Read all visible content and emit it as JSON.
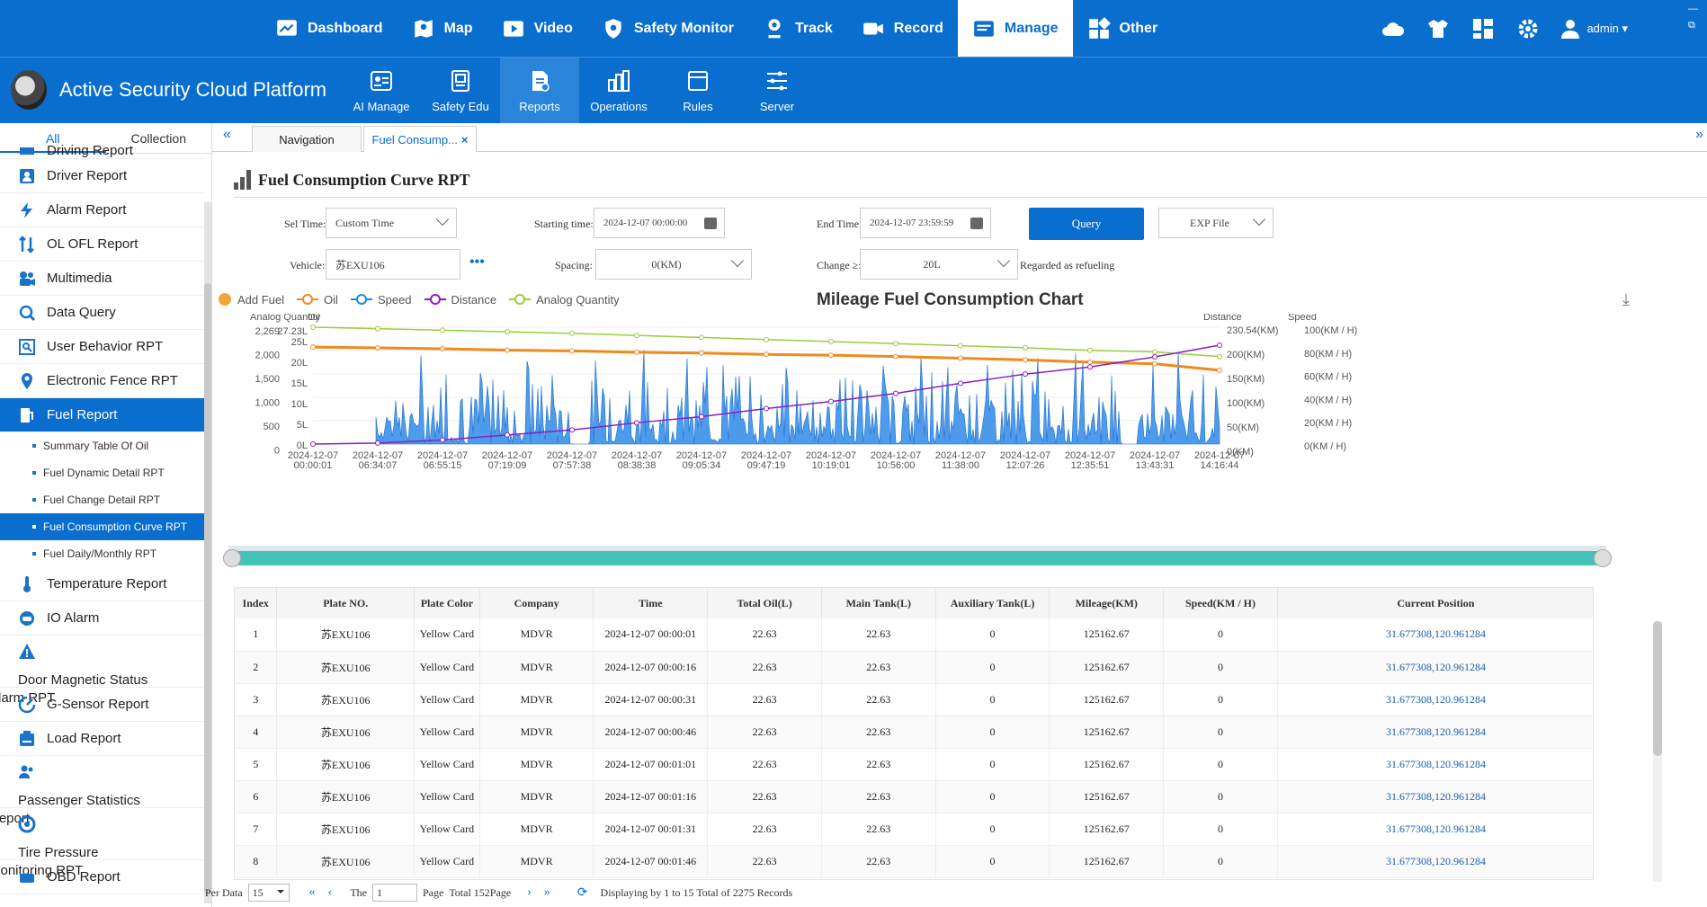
{
  "topnav": {
    "items": [
      {
        "label": "Dashboard",
        "icon": "dashboard-icon"
      },
      {
        "label": "Map",
        "icon": "map-icon"
      },
      {
        "label": "Video",
        "icon": "video-icon"
      },
      {
        "label": "Safety Monitor",
        "icon": "shield-icon"
      },
      {
        "label": "Track",
        "icon": "track-icon"
      },
      {
        "label": "Record",
        "icon": "record-icon"
      },
      {
        "label": "Manage",
        "icon": "manage-icon"
      },
      {
        "label": "Other",
        "icon": "grid-icon"
      }
    ],
    "active": "Manage",
    "user": "admin ▾"
  },
  "brand": {
    "title": "Active Security Cloud Platform"
  },
  "subnav": {
    "items": [
      {
        "label": "AI Manage"
      },
      {
        "label": "Safety Edu"
      },
      {
        "label": "Reports"
      },
      {
        "label": "Operations"
      },
      {
        "label": "Rules"
      },
      {
        "label": "Server"
      }
    ],
    "active": "Reports"
  },
  "sidebar": {
    "tabs": [
      "All",
      "Collection"
    ],
    "items": [
      {
        "label": "Driving Report"
      },
      {
        "label": "Driver Report"
      },
      {
        "label": "Alarm Report"
      },
      {
        "label": "OL OFL Report"
      },
      {
        "label": "Multimedia"
      },
      {
        "label": "Data Query"
      },
      {
        "label": "User Behavior RPT"
      },
      {
        "label": "Electronic Fence RPT"
      },
      {
        "label": "Fuel Report"
      },
      {
        "label": "Temperature Report"
      },
      {
        "label": "IO Alarm"
      },
      {
        "label": "Door Magnetic Status Alarm RPT"
      },
      {
        "label": "G-Sensor Report"
      },
      {
        "label": "Load Report"
      },
      {
        "label": "Passenger Statistics Report"
      },
      {
        "label": "Tire Pressure Monitoring RPT"
      },
      {
        "label": "OBD Report"
      }
    ],
    "fuel_sub": [
      {
        "label": "Summary Table Of Oil"
      },
      {
        "label": "Fuel Dynamic Detail RPT"
      },
      {
        "label": "Fuel Change Detail RPT"
      },
      {
        "label": "Fuel Consumption Curve RPT"
      },
      {
        "label": "Fuel Daily/Monthly RPT"
      }
    ]
  },
  "tabs": {
    "navigation": "Navigation",
    "fuel": "Fuel Consump...",
    "close": "×"
  },
  "page": {
    "title": "Fuel Consumption Curve RPT"
  },
  "filters": {
    "sel_time_label": "Sel Time:",
    "sel_time_value": "Custom Time",
    "start_label": "Starting time:",
    "start_value": "2024-12-07 00:00:00",
    "end_label": "End Time:",
    "end_value": "2024-12-07 23:59:59",
    "query": "Query",
    "export": "EXP File",
    "vehicle_label": "Vehicle:",
    "vehicle_value": "苏EXU106",
    "more": "•••",
    "spacing_label": "Spacing:",
    "spacing_value": "0(KM)",
    "change_label": "Change ≥:",
    "change_value": "20L",
    "refuel_note": "Regarded as refueling"
  },
  "chart_data": {
    "type": "line",
    "title": "Mileage Fuel Consumption Chart",
    "legend": [
      "Add Fuel",
      "Oil",
      "Speed",
      "Distance",
      "Analog Quantity"
    ],
    "legend_colors": {
      "Add Fuel": "#f3a43a",
      "Oil": "#f08a1c",
      "Speed": "#1f88e5",
      "Distance": "#8a1fbf",
      "Analog Quantity": "#9acd3c"
    },
    "axis_titles": {
      "analog": "Analog Quantity",
      "oil": "Oil",
      "distance": "Distance",
      "speed": "Speed"
    },
    "analog_ticks": [
      "2,269",
      "2,000",
      "1,500",
      "1,000",
      "500",
      "0"
    ],
    "oil_ticks": [
      "27.23L",
      "25L",
      "20L",
      "15L",
      "10L",
      "5L",
      "0L"
    ],
    "distance_ticks": [
      "230.54(KM)",
      "200(KM)",
      "150(KM)",
      "100(KM)",
      "50(KM)",
      "0(KM)"
    ],
    "speed_ticks": [
      "100(KM / H)",
      "80(KM / H)",
      "60(KM / H)",
      "40(KM / H)",
      "20(KM / H)",
      "0(KM / H)"
    ],
    "x_ticks": [
      [
        "2024-12-07",
        "00:00:01"
      ],
      [
        "2024-12-07",
        "06:34:07"
      ],
      [
        "2024-12-07",
        "06:55:15"
      ],
      [
        "2024-12-07",
        "07:19:09"
      ],
      [
        "2024-12-07",
        "07:57:38"
      ],
      [
        "2024-12-07",
        "08:38:38"
      ],
      [
        "2024-12-07",
        "09:05:34"
      ],
      [
        "2024-12-07",
        "09:47:19"
      ],
      [
        "2024-12-07",
        "10:19:01"
      ],
      [
        "2024-12-07",
        "10:56:00"
      ],
      [
        "2024-12-07",
        "11:38:00"
      ],
      [
        "2024-12-07",
        "12:07:26"
      ],
      [
        "2024-12-07",
        "12:35:51"
      ],
      [
        "2024-12-07",
        "13:43:31"
      ],
      [
        "2024-12-07",
        "14:16:44"
      ]
    ],
    "series": [
      {
        "name": "Oil",
        "values": [
          22.6,
          22.4,
          22.2,
          21.9,
          21.7,
          21.4,
          21.2,
          20.9,
          20.7,
          20.4,
          20.0,
          19.6,
          19.1,
          18.7,
          17.2
        ]
      },
      {
        "name": "Analog Quantity",
        "values": [
          2269,
          2240,
          2210,
          2180,
          2150,
          2110,
          2070,
          2030,
          1990,
          1950,
          1910,
          1870,
          1820,
          1790,
          1700
        ]
      },
      {
        "name": "Distance",
        "values": [
          0,
          2,
          8,
          18,
          28,
          42,
          54,
          70,
          84,
          100,
          120,
          138,
          152,
          172,
          195
        ]
      }
    ],
    "speed_note": "speed shown as dense area (0-100 KM/H)"
  },
  "table": {
    "columns": [
      "Index",
      "Plate NO.",
      "Plate Color",
      "Company",
      "Time",
      "Total Oil(L)",
      "Main Tank(L)",
      "Auxiliary Tank(L)",
      "Mileage(KM)",
      "Speed(KM / H)",
      "Current Position"
    ],
    "rows": [
      [
        "1",
        "苏EXU106",
        "Yellow Card",
        "MDVR",
        "2024-12-07 00:00:01",
        "22.63",
        "22.63",
        "0",
        "125162.67",
        "0",
        "31.677308,120.961284"
      ],
      [
        "2",
        "苏EXU106",
        "Yellow Card",
        "MDVR",
        "2024-12-07 00:00:16",
        "22.63",
        "22.63",
        "0",
        "125162.67",
        "0",
        "31.677308,120.961284"
      ],
      [
        "3",
        "苏EXU106",
        "Yellow Card",
        "MDVR",
        "2024-12-07 00:00:31",
        "22.63",
        "22.63",
        "0",
        "125162.67",
        "0",
        "31.677308,120.961284"
      ],
      [
        "4",
        "苏EXU106",
        "Yellow Card",
        "MDVR",
        "2024-12-07 00:00:46",
        "22.63",
        "22.63",
        "0",
        "125162.67",
        "0",
        "31.677308,120.961284"
      ],
      [
        "5",
        "苏EXU106",
        "Yellow Card",
        "MDVR",
        "2024-12-07 00:01:01",
        "22.63",
        "22.63",
        "0",
        "125162.67",
        "0",
        "31.677308,120.961284"
      ],
      [
        "6",
        "苏EXU106",
        "Yellow Card",
        "MDVR",
        "2024-12-07 00:01:16",
        "22.63",
        "22.63",
        "0",
        "125162.67",
        "0",
        "31.677308,120.961284"
      ],
      [
        "7",
        "苏EXU106",
        "Yellow Card",
        "MDVR",
        "2024-12-07 00:01:31",
        "22.63",
        "22.63",
        "0",
        "125162.67",
        "0",
        "31.677308,120.961284"
      ],
      [
        "8",
        "苏EXU106",
        "Yellow Card",
        "MDVR",
        "2024-12-07 00:01:46",
        "22.63",
        "22.63",
        "0",
        "125162.67",
        "0",
        "31.677308,120.961284"
      ]
    ]
  },
  "pager": {
    "per_data": "Per Data",
    "per_value": "15",
    "the": "The",
    "page_value": "1",
    "page": "Page",
    "total": "Total 152Page",
    "display": "Displaying by 1 to 15 Total of 2275 Records"
  }
}
